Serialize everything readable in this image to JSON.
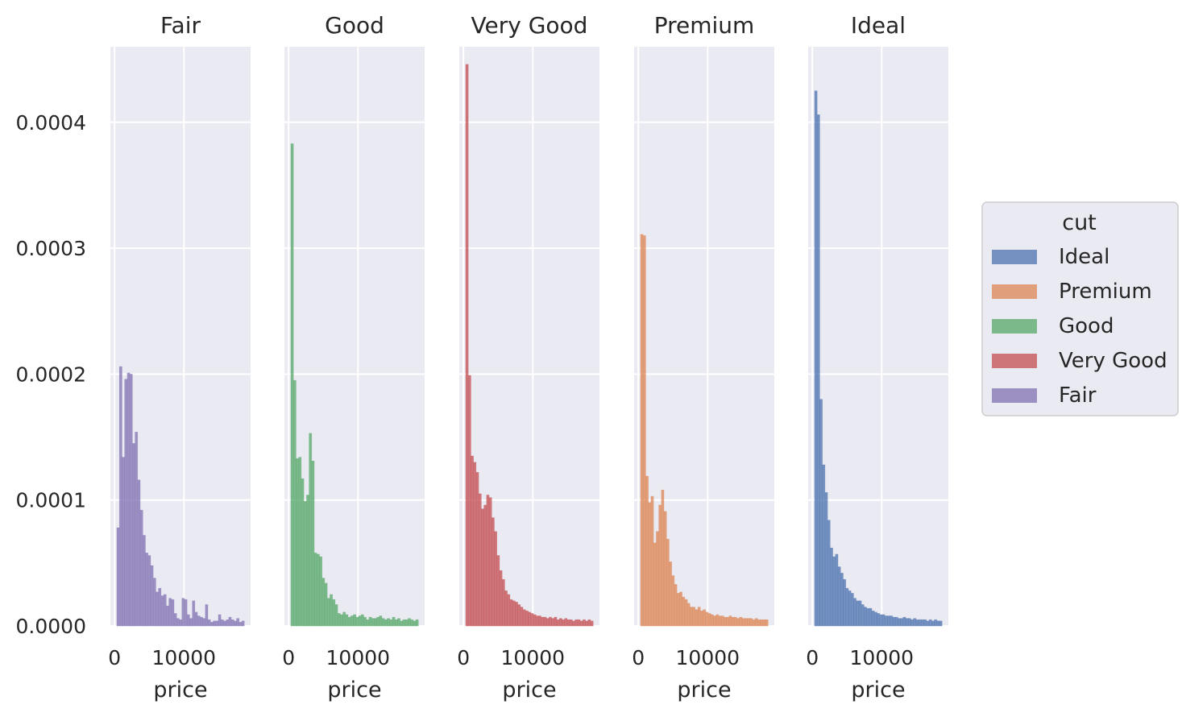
{
  "chart_data": {
    "type": "histogram",
    "stat": "density",
    "facet_by": "cut",
    "ylim": [
      0,
      0.00046
    ],
    "xlim": [
      -600,
      19600
    ],
    "yticks": [
      "0.0000",
      "0.0001",
      "0.0002",
      "0.0003",
      "0.0004"
    ],
    "ytick_values": [
      0,
      0.0001,
      0.0002,
      0.0003,
      0.0004
    ],
    "xticks": [
      "0",
      "10000"
    ],
    "xtick_values": [
      0,
      10000
    ],
    "xlabel": "price",
    "ylabel": "",
    "grid": true,
    "bin_start": 326,
    "bin_width": 375,
    "legend": {
      "title": "cut",
      "placement": "right",
      "entries": [
        {
          "label": "Ideal",
          "color": "#4c72b0"
        },
        {
          "label": "Premium",
          "color": "#dd8452"
        },
        {
          "label": "Good",
          "color": "#55a868"
        },
        {
          "label": "Very Good",
          "color": "#c44e52"
        },
        {
          "label": "Fair",
          "color": "#8172b3"
        }
      ]
    },
    "panels": [
      {
        "title": "Fair",
        "color": "#8172b3",
        "values": [
          7.8e-05,
          0.000206,
          0.000134,
          0.000196,
          0.000201,
          0.0002,
          0.000145,
          0.000154,
          0.000116,
          9.2e-05,
          7.2e-05,
          5.8e-05,
          5.6e-05,
          4.8e-05,
          3.8e-05,
          2.7e-05,
          3e-05,
          2.4e-05,
          2.5e-05,
          1.6e-05,
          2.2e-05,
          2.1e-05,
          1e-05,
          6e-06,
          5e-06,
          2.2e-05,
          2.1e-05,
          9e-06,
          6e-06,
          2e-05,
          1.1e-05,
          8e-06,
          7e-06,
          6e-06,
          1.7e-05,
          5e-06,
          3e-06,
          4e-06,
          4e-06,
          9e-06,
          5e-06,
          4e-06,
          5e-06,
          7e-06,
          5e-06,
          4e-06,
          6e-06,
          3e-06,
          4e-06
        ]
      },
      {
        "title": "Good",
        "color": "#55a868",
        "values": [
          0.000383,
          0.000195,
          0.000133,
          0.000134,
          0.000117,
          9.9e-05,
          0.000104,
          0.000153,
          0.000131,
          5.8e-05,
          5.7e-05,
          5.5e-05,
          3.8e-05,
          3.4e-05,
          2.2e-05,
          2.5e-05,
          2.1e-05,
          1.7e-05,
          1e-05,
          9e-06,
          1.1e-05,
          9e-06,
          7e-06,
          8e-06,
          9e-06,
          7e-06,
          8e-06,
          9e-06,
          7e-06,
          5e-06,
          7e-06,
          6e-06,
          6e-06,
          7e-06,
          8e-06,
          6e-06,
          5e-06,
          6e-06,
          5e-06,
          7e-06,
          5e-06,
          6e-06,
          4e-06,
          5e-06,
          5e-06,
          6e-06,
          5e-06,
          4e-06,
          5e-06
        ]
      },
      {
        "title": "Very Good",
        "color": "#c44e52",
        "values": [
          0.000446,
          0.000199,
          0.000135,
          0.00013,
          0.000122,
          0.000105,
          9.3e-05,
          9.6e-05,
          0.000104,
          0.000102,
          8.6e-05,
          7.5e-05,
          5.6e-05,
          4.4e-05,
          3.7e-05,
          2.8e-05,
          2.5e-05,
          2.1e-05,
          2e-05,
          1.9e-05,
          1.7e-05,
          1.5e-05,
          1.3e-05,
          1.2e-05,
          1.1e-05,
          1e-05,
          9e-06,
          8e-06,
          8e-06,
          7e-06,
          7e-06,
          6e-06,
          7e-06,
          6e-06,
          7e-06,
          5e-06,
          6e-06,
          5e-06,
          6e-06,
          5e-06,
          5e-06,
          4e-06,
          5e-06,
          5e-06,
          4e-06,
          5e-06,
          4e-06,
          5e-06,
          4e-06
        ]
      },
      {
        "title": "Premium",
        "color": "#dd8452",
        "values": [
          0.000311,
          0.00031,
          0.000119,
          9.8e-05,
          0.000103,
          6.6e-05,
          7.5e-05,
          9.6e-05,
          0.000108,
          9.1e-05,
          6.9e-05,
          5.1e-05,
          4e-05,
          3.3e-05,
          2.6e-05,
          2.7e-05,
          2.3e-05,
          2.1e-05,
          1.8e-05,
          1.5e-05,
          1.5e-05,
          1.3e-05,
          1.5e-05,
          1.2e-05,
          1.3e-05,
          1.1e-05,
          1e-05,
          9e-06,
          8e-06,
          9e-06,
          8e-06,
          8e-06,
          7e-06,
          7e-06,
          8e-06,
          7e-06,
          7e-06,
          6e-06,
          7e-06,
          6e-06,
          6e-06,
          6e-06,
          6e-06,
          5e-06,
          6e-06,
          5e-06,
          5e-06,
          5e-06,
          5e-06
        ]
      },
      {
        "title": "Ideal",
        "color": "#4c72b0",
        "values": [
          0.000425,
          0.000406,
          0.00018,
          0.000128,
          0.000106,
          8.4e-05,
          6.2e-05,
          5.5e-05,
          5.7e-05,
          4.7e-05,
          4.2e-05,
          3.7e-05,
          3e-05,
          2.8e-05,
          2.6e-05,
          2.2e-05,
          2e-05,
          2e-05,
          1.7e-05,
          1.5e-05,
          1.4e-05,
          1.4e-05,
          1.2e-05,
          1.1e-05,
          1e-05,
          9e-06,
          9e-06,
          8e-06,
          8e-06,
          8e-06,
          7e-06,
          7e-06,
          6e-06,
          6e-06,
          7e-06,
          6e-06,
          6e-06,
          5e-06,
          6e-06,
          5e-06,
          5e-06,
          5e-06,
          5e-06,
          4e-06,
          5e-06,
          4e-06,
          5e-06,
          4e-06,
          4e-06
        ]
      }
    ]
  }
}
